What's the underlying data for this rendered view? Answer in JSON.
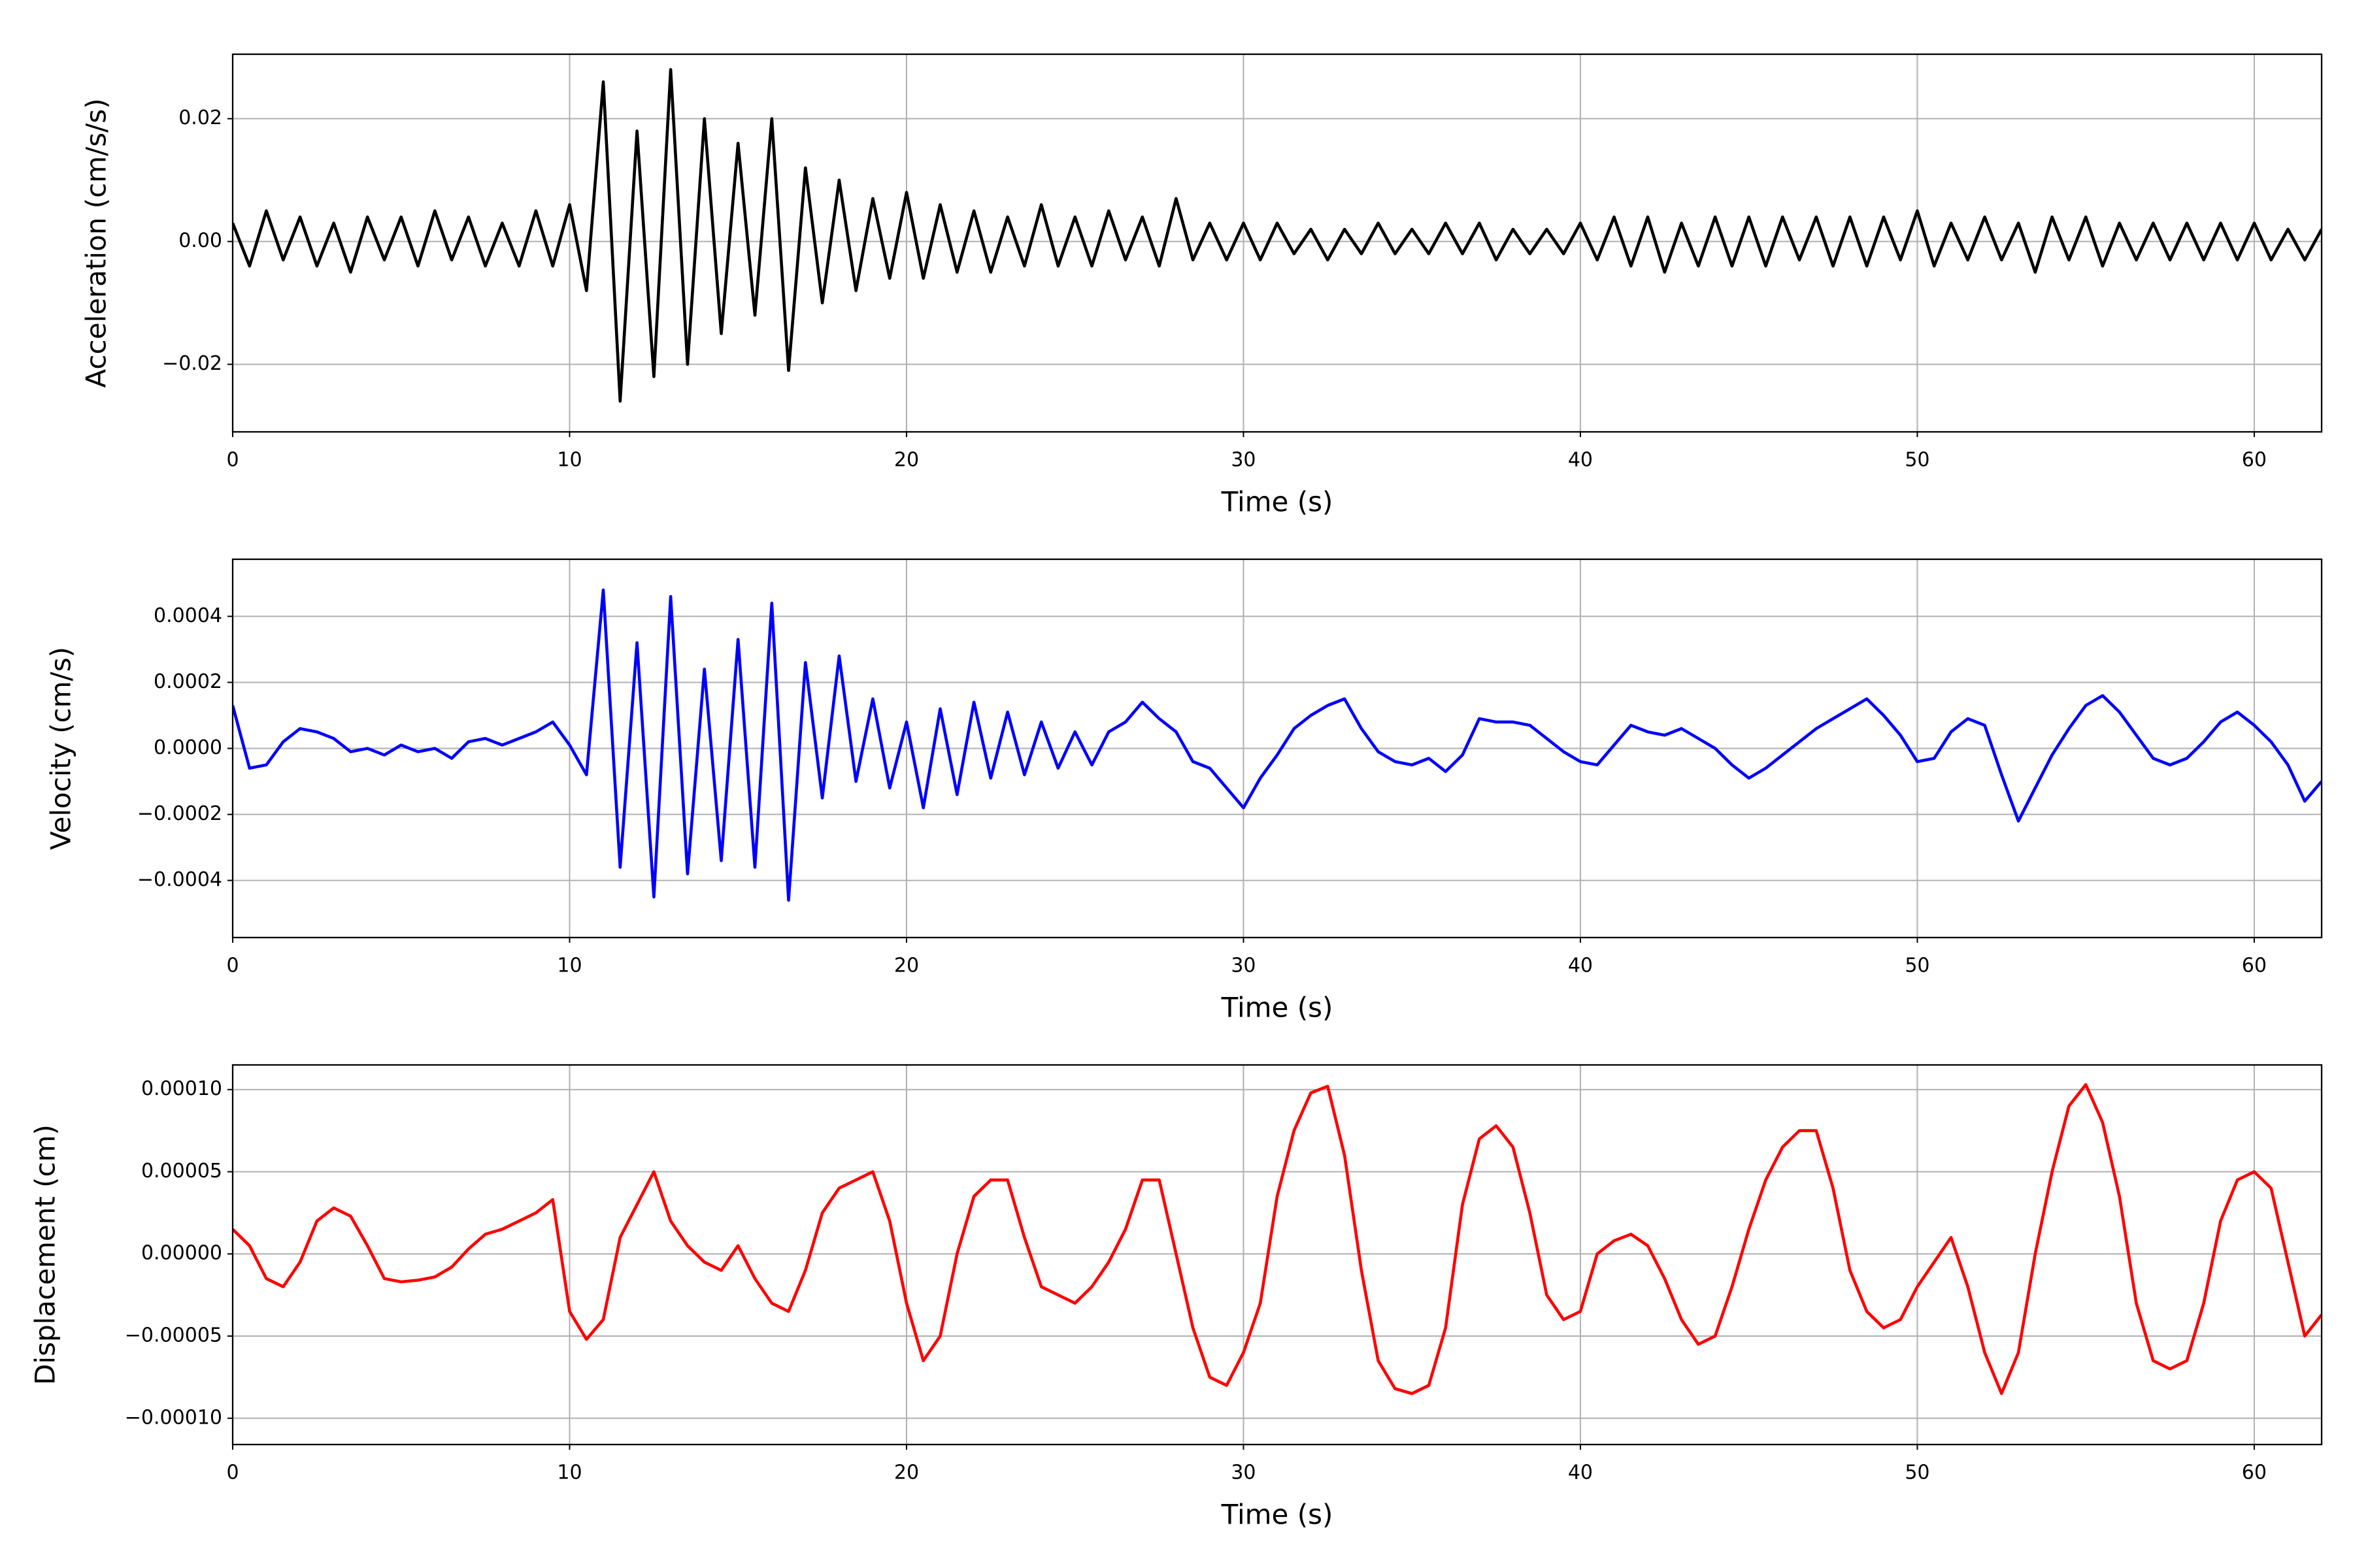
{
  "chart_data": [
    {
      "type": "line",
      "xlabel": "Time (s)",
      "ylabel": "Acceleration (cm/s/s)",
      "color": "#000000",
      "grid": true,
      "xlim": [
        0,
        62
      ],
      "xticks": [
        0,
        10,
        20,
        30,
        40,
        50,
        60
      ],
      "ylim": [
        -0.031,
        0.0305
      ],
      "yticks": [
        {
          "value": -0.02,
          "label": "−0.02"
        },
        {
          "value": 0,
          "label": "0.00"
        },
        0.02
      ],
      "x": [
        0,
        0.5,
        1,
        1.5,
        2,
        2.5,
        3,
        3.5,
        4,
        4.5,
        5,
        5.5,
        6,
        6.5,
        7,
        7.5,
        8,
        8.5,
        9,
        9.5,
        10,
        10.5,
        11,
        11.5,
        12,
        12.5,
        13,
        13.5,
        14,
        14.5,
        15,
        15.5,
        16,
        16.5,
        17,
        17.5,
        18,
        18.5,
        19,
        19.5,
        20,
        20.5,
        21,
        21.5,
        22,
        22.5,
        23,
        23.5,
        24,
        24.5,
        25,
        25.5,
        26,
        26.5,
        27,
        27.5,
        28,
        28.5,
        29,
        29.5,
        30,
        30.5,
        31,
        31.5,
        32,
        32.5,
        33,
        33.5,
        34,
        34.5,
        35,
        35.5,
        36,
        36.5,
        37,
        37.5,
        38,
        38.5,
        39,
        39.5,
        40,
        40.5,
        41,
        41.5,
        42,
        42.5,
        43,
        43.5,
        44,
        44.5,
        45,
        45.5,
        46,
        46.5,
        47,
        47.5,
        48,
        48.5,
        49,
        49.5,
        50,
        50.5,
        51,
        51.5,
        52,
        52.5,
        53,
        53.5,
        54,
        54.5,
        55,
        55.5,
        56,
        56.5,
        57,
        57.5,
        58,
        58.5,
        59,
        59.5,
        60,
        60.5,
        61,
        61.5,
        62
      ],
      "values": [
        0.003,
        -0.004,
        0.005,
        -0.003,
        0.004,
        -0.004,
        0.003,
        -0.005,
        0.004,
        -0.003,
        0.004,
        -0.004,
        0.005,
        -0.003,
        0.004,
        -0.004,
        0.003,
        -0.004,
        0.005,
        -0.004,
        0.006,
        -0.008,
        0.026,
        -0.026,
        0.018,
        -0.022,
        0.028,
        -0.02,
        0.02,
        -0.015,
        0.016,
        -0.012,
        0.02,
        -0.021,
        0.012,
        -0.01,
        0.01,
        -0.008,
        0.007,
        -0.006,
        0.008,
        -0.006,
        0.006,
        -0.005,
        0.005,
        -0.005,
        0.004,
        -0.004,
        0.006,
        -0.004,
        0.004,
        -0.004,
        0.005,
        -0.003,
        0.004,
        -0.004,
        0.007,
        -0.003,
        0.003,
        -0.003,
        0.003,
        -0.003,
        0.003,
        -0.002,
        0.002,
        -0.003,
        0.002,
        -0.002,
        0.003,
        -0.002,
        0.002,
        -0.002,
        0.003,
        -0.002,
        0.003,
        -0.003,
        0.002,
        -0.002,
        0.002,
        -0.002,
        0.003,
        -0.003,
        0.004,
        -0.004,
        0.004,
        -0.005,
        0.003,
        -0.004,
        0.004,
        -0.004,
        0.004,
        -0.004,
        0.004,
        -0.003,
        0.004,
        -0.004,
        0.004,
        -0.004,
        0.004,
        -0.003,
        0.005,
        -0.004,
        0.003,
        -0.003,
        0.004,
        -0.003,
        0.003,
        -0.005,
        0.004,
        -0.003,
        0.004,
        -0.004,
        0.003,
        -0.003,
        0.003,
        -0.003,
        0.003,
        -0.003,
        0.003,
        -0.003,
        0.003,
        -0.003,
        0.002,
        -0.003,
        0.002
      ]
    },
    {
      "type": "line",
      "xlabel": "Time (s)",
      "ylabel": "Velocity (cm/s)",
      "color": "#0000ff",
      "grid": true,
      "xlim": [
        0,
        62
      ],
      "xticks": [
        0,
        10,
        20,
        30,
        40,
        50,
        60
      ],
      "ylim": [
        -0.000573,
        0.000573
      ],
      "yticks": [
        {
          "value": -0.0004,
          "label": "−0.0004"
        },
        {
          "value": -0.0002,
          "label": "−0.0002"
        },
        {
          "value": 0,
          "label": "0.0000"
        },
        0.0002,
        0.0004
      ],
      "x": [
        0,
        0.5,
        1,
        1.5,
        2,
        2.5,
        3,
        3.5,
        4,
        4.5,
        5,
        5.5,
        6,
        6.5,
        7,
        7.5,
        8,
        8.5,
        9,
        9.5,
        10,
        10.5,
        11,
        11.5,
        12,
        12.5,
        13,
        13.5,
        14,
        14.5,
        15,
        15.5,
        16,
        16.5,
        17,
        17.5,
        18,
        18.5,
        19,
        19.5,
        20,
        20.5,
        21,
        21.5,
        22,
        22.5,
        23,
        23.5,
        24,
        24.5,
        25,
        25.5,
        26,
        26.5,
        27,
        27.5,
        28,
        28.5,
        29,
        29.5,
        30,
        30.5,
        31,
        31.5,
        32,
        32.5,
        33,
        33.5,
        34,
        34.5,
        35,
        35.5,
        36,
        36.5,
        37,
        37.5,
        38,
        38.5,
        39,
        39.5,
        40,
        40.5,
        41,
        41.5,
        42,
        42.5,
        43,
        43.5,
        44,
        44.5,
        45,
        45.5,
        46,
        46.5,
        47,
        47.5,
        48,
        48.5,
        49,
        49.5,
        50,
        50.5,
        51,
        51.5,
        52,
        52.5,
        53,
        53.5,
        54,
        54.5,
        55,
        55.5,
        56,
        56.5,
        57,
        57.5,
        58,
        58.5,
        59,
        59.5,
        60,
        60.5,
        61,
        61.5,
        62
      ],
      "values": [
        0.00013,
        -6e-05,
        -5e-05,
        2e-05,
        6e-05,
        5e-05,
        3e-05,
        -1e-05,
        0,
        -2e-05,
        1e-05,
        -1e-05,
        0,
        -3e-05,
        2e-05,
        3e-05,
        1e-05,
        3e-05,
        5e-05,
        8e-05,
        1e-05,
        -8e-05,
        0.00048,
        -0.00036,
        0.00032,
        -0.00045,
        0.00046,
        -0.00038,
        0.00024,
        -0.00034,
        0.00033,
        -0.00036,
        0.00044,
        -0.00046,
        0.00026,
        -0.00015,
        0.00028,
        -0.0001,
        0.00015,
        -0.00012,
        8e-05,
        -0.00018,
        0.00012,
        -0.00014,
        0.00014,
        -9e-05,
        0.00011,
        -8e-05,
        8e-05,
        -6e-05,
        5e-05,
        -5e-05,
        5e-05,
        8e-05,
        0.00014,
        9e-05,
        5e-05,
        -4e-05,
        -6e-05,
        -0.00012,
        -0.00018,
        -9e-05,
        -2e-05,
        6e-05,
        0.0001,
        0.00013,
        0.00015,
        6e-05,
        -1e-05,
        -4e-05,
        -5e-05,
        -3e-05,
        -7e-05,
        -2e-05,
        9e-05,
        8e-05,
        8e-05,
        7e-05,
        3e-05,
        -1e-05,
        -4e-05,
        -5e-05,
        1e-05,
        7e-05,
        5e-05,
        4e-05,
        6e-05,
        3e-05,
        0,
        -5e-05,
        -9e-05,
        -6e-05,
        -2e-05,
        2e-05,
        6e-05,
        9e-05,
        0.00012,
        0.00015,
        0.0001,
        4e-05,
        -4e-05,
        -3e-05,
        5e-05,
        9e-05,
        7e-05,
        -8e-05,
        -0.00022,
        -0.00012,
        -2e-05,
        6e-05,
        0.00013,
        0.00016,
        0.00011,
        4e-05,
        -3e-05,
        -5e-05,
        -3e-05,
        2e-05,
        8e-05,
        0.00011,
        7e-05,
        2e-05,
        -5e-05,
        -0.00016,
        -0.0001
      ]
    },
    {
      "type": "line",
      "xlabel": "Time (s)",
      "ylabel": "Displacement (cm)",
      "color": "#ff0000",
      "grid": true,
      "xlim": [
        0,
        62
      ],
      "xticks": [
        0,
        10,
        20,
        30,
        40,
        50,
        60
      ],
      "ylim": [
        -0.000116,
        0.000115
      ],
      "yticks": [
        {
          "value": -0.0001,
          "label": "−0.00010"
        },
        {
          "value": -5e-05,
          "label": "−0.00005"
        },
        {
          "value": 0,
          "label": "0.00000"
        },
        {
          "value": 5e-05,
          "label": "0.00005"
        },
        {
          "value": 0.0001,
          "label": "0.00010"
        }
      ],
      "x": [
        0,
        0.5,
        1,
        1.5,
        2,
        2.5,
        3,
        3.5,
        4,
        4.5,
        5,
        5.5,
        6,
        6.5,
        7,
        7.5,
        8,
        8.5,
        9,
        9.5,
        10,
        10.5,
        11,
        11.5,
        12,
        12.5,
        13,
        13.5,
        14,
        14.5,
        15,
        15.5,
        16,
        16.5,
        17,
        17.5,
        18,
        18.5,
        19,
        19.5,
        20,
        20.5,
        21,
        21.5,
        22,
        22.5,
        23,
        23.5,
        24,
        24.5,
        25,
        25.5,
        26,
        26.5,
        27,
        27.5,
        28,
        28.5,
        29,
        29.5,
        30,
        30.5,
        31,
        31.5,
        32,
        32.5,
        33,
        33.5,
        34,
        34.5,
        35,
        35.5,
        36,
        36.5,
        37,
        37.5,
        38,
        38.5,
        39,
        39.5,
        40,
        40.5,
        41,
        41.5,
        42,
        42.5,
        43,
        43.5,
        44,
        44.5,
        45,
        45.5,
        46,
        46.5,
        47,
        47.5,
        48,
        48.5,
        49,
        49.5,
        50,
        50.5,
        51,
        51.5,
        52,
        52.5,
        53,
        53.5,
        54,
        54.5,
        55,
        55.5,
        56,
        56.5,
        57,
        57.5,
        58,
        58.5,
        59,
        59.5,
        60,
        60.5,
        61,
        61.5,
        62
      ],
      "values": [
        1.5e-05,
        5e-06,
        -1.5e-05,
        -2e-05,
        -5e-06,
        2e-05,
        2.8e-05,
        2.3e-05,
        5e-06,
        -1.5e-05,
        -1.7e-05,
        -1.6e-05,
        -1.4e-05,
        -8e-06,
        3e-06,
        1.2e-05,
        1.5e-05,
        2e-05,
        2.5e-05,
        3.3e-05,
        -3.5e-05,
        -5.2e-05,
        -4e-05,
        1e-05,
        3e-05,
        5e-05,
        2e-05,
        5e-06,
        -5e-06,
        -1e-05,
        5e-06,
        -1.5e-05,
        -3e-05,
        -3.5e-05,
        -1e-05,
        2.5e-05,
        4e-05,
        4.5e-05,
        5e-05,
        2e-05,
        -3e-05,
        -6.5e-05,
        -5e-05,
        0,
        3.5e-05,
        4.5e-05,
        4.5e-05,
        1e-05,
        -2e-05,
        -2.5e-05,
        -3e-05,
        -2e-05,
        -5e-06,
        1.5e-05,
        4.5e-05,
        4.5e-05,
        0,
        -4.5e-05,
        -7.5e-05,
        -8e-05,
        -6e-05,
        -3e-05,
        3.5e-05,
        7.5e-05,
        9.8e-05,
        0.000102,
        6e-05,
        -1e-05,
        -6.5e-05,
        -8.2e-05,
        -8.5e-05,
        -8e-05,
        -4.5e-05,
        3e-05,
        7e-05,
        7.8e-05,
        6.5e-05,
        2.5e-05,
        -2.5e-05,
        -4e-05,
        -3.5e-05,
        0,
        8e-06,
        1.2e-05,
        5e-06,
        -1.5e-05,
        -4e-05,
        -5.5e-05,
        -5e-05,
        -2e-05,
        1.5e-05,
        4.5e-05,
        6.5e-05,
        7.5e-05,
        7.5e-05,
        4e-05,
        -1e-05,
        -3.5e-05,
        -4.5e-05,
        -4e-05,
        -2e-05,
        -5e-06,
        1e-05,
        -2e-05,
        -6e-05,
        -8.5e-05,
        -6e-05,
        0,
        5e-05,
        9e-05,
        0.000103,
        8e-05,
        3.5e-05,
        -3e-05,
        -6.5e-05,
        -7e-05,
        -6.5e-05,
        -3e-05,
        2e-05,
        4.5e-05,
        5e-05,
        4e-05,
        -5e-06,
        -5e-05,
        -3.7e-05
      ]
    }
  ]
}
